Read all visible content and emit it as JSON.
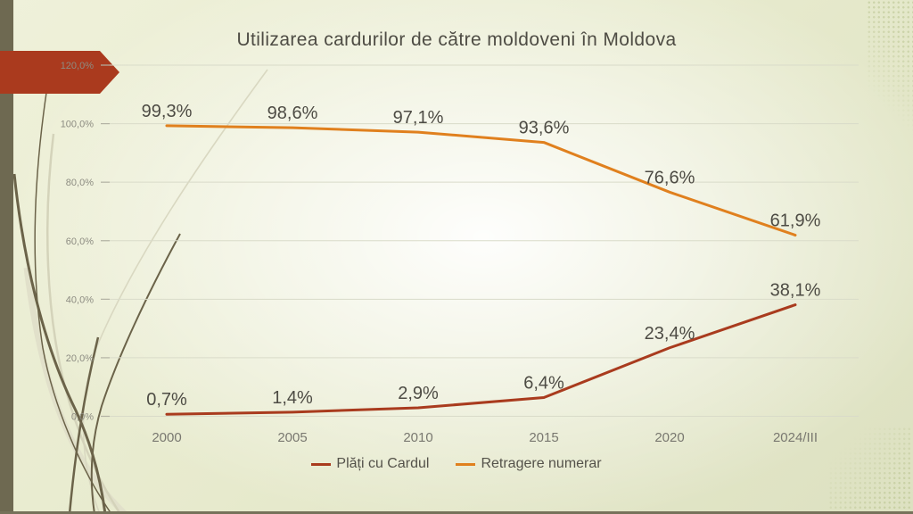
{
  "slide": {
    "title": "Utilizarea cardurilor de către moldoveni în Moldova"
  },
  "chart_data": {
    "type": "line",
    "title": "Utilizarea cardurilor de către moldoveni în Moldova",
    "categories": [
      "2000",
      "2005",
      "2010",
      "2015",
      "2020",
      "2024/III"
    ],
    "series": [
      {
        "name": "Plăți cu Cardul",
        "color": "#a93b1e",
        "values": [
          0.7,
          1.4,
          2.9,
          6.4,
          23.4,
          38.1
        ],
        "labels": [
          "0,7%",
          "1,4%",
          "2,9%",
          "6,4%",
          "23,4%",
          "38,1%"
        ]
      },
      {
        "name": "Retragere numerar",
        "color": "#e0801e",
        "values": [
          99.3,
          98.6,
          97.1,
          93.6,
          76.6,
          61.9
        ],
        "labels": [
          "99,3%",
          "98,6%",
          "97,1%",
          "93,6%",
          "76,6%",
          "61,9%"
        ]
      }
    ],
    "xlabel": "",
    "ylabel": "",
    "y_axis": {
      "min": 0,
      "max": 120,
      "step": 20,
      "tick_labels": [
        "0,0%",
        "20,0%",
        "40,0%",
        "60,0%",
        "80,0%",
        "100,0%",
        "120,0%"
      ]
    },
    "grid": true,
    "legend_position": "bottom"
  },
  "colors": {
    "series_card_payments": "#a93b1e",
    "series_cash_withdrawal": "#e0801e",
    "arrow_banner": "#aa3a1e",
    "left_band": "#6e6951",
    "background_base": "#e7eacd"
  }
}
